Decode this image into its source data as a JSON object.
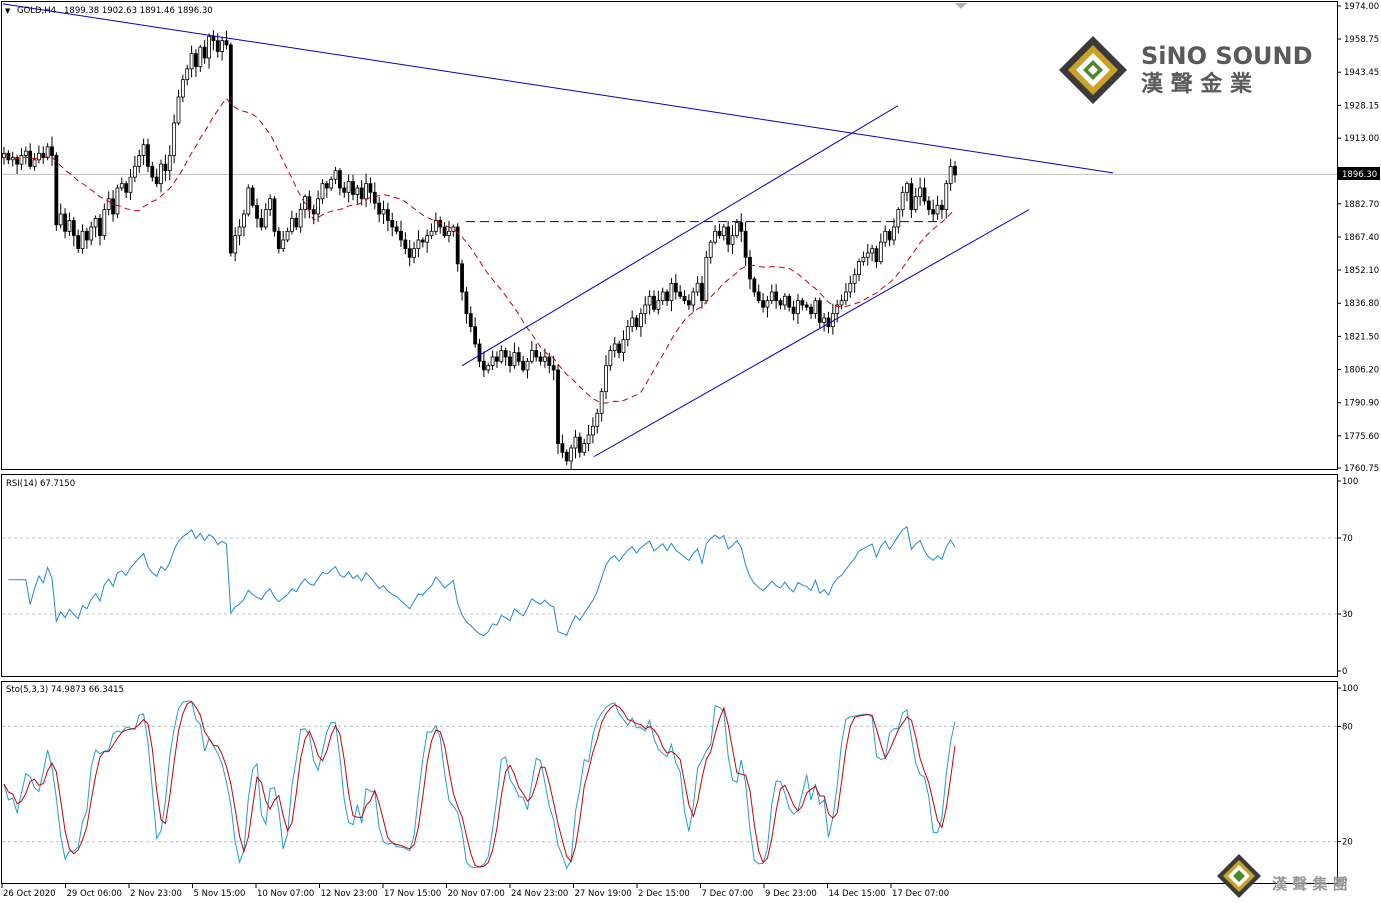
{
  "header": {
    "symbol": "GOLD,H4",
    "ohlc": "1899.38 1902.63 1891.46 1896.30"
  },
  "brand": {
    "name_en": "SiNO SOUND",
    "name_zh": "漢 聲 金 業",
    "footer_zh": "漢 聲 集 團"
  },
  "chart_data": [
    {
      "type": "candlestick",
      "title": "GOLD,H4",
      "ylim": [
        1760.75,
        1974.0
      ],
      "yticks": [
        1974.0,
        1958.75,
        1943.45,
        1928.15,
        1913.0,
        1882.7,
        1867.4,
        1852.1,
        1836.8,
        1821.5,
        1806.2,
        1790.9,
        1775.6,
        1760.75
      ],
      "price_label": "1896.30",
      "current_price": 1896.3,
      "xticks": [
        "26 Oct 2020",
        "29 Oct 06:00",
        "2 Nov 23:00",
        "5 Nov 15:00",
        "10 Nov 07:00",
        "12 Nov 23:00",
        "17 Nov 15:00",
        "20 Nov 07:00",
        "24 Nov 23:00",
        "27 Nov 19:00",
        "2 Dec 15:00",
        "7 Dec 07:00",
        "9 Dec 23:00",
        "14 Dec 15:00",
        "17 Dec 07:00"
      ],
      "close": [
        1906,
        1903,
        1904,
        1901,
        1905,
        1907,
        1900,
        1903,
        1906,
        1904,
        1909,
        1905,
        1873,
        1878,
        1870,
        1875,
        1868,
        1862,
        1870,
        1866,
        1872,
        1876,
        1868,
        1880,
        1885,
        1878,
        1890,
        1892,
        1888,
        1895,
        1900,
        1905,
        1910,
        1900,
        1895,
        1892,
        1901,
        1898,
        1905,
        1920,
        1932,
        1940,
        1945,
        1952,
        1946,
        1955,
        1950,
        1960,
        1958,
        1953,
        1958,
        1956,
        1860,
        1868,
        1872,
        1878,
        1890,
        1882,
        1876,
        1872,
        1880,
        1885,
        1870,
        1862,
        1866,
        1870,
        1876,
        1872,
        1880,
        1886,
        1880,
        1878,
        1885,
        1892,
        1890,
        1894,
        1898,
        1890,
        1888,
        1893,
        1887,
        1890,
        1885,
        1892,
        1888,
        1883,
        1878,
        1880,
        1875,
        1872,
        1870,
        1866,
        1862,
        1858,
        1862,
        1866,
        1865,
        1868,
        1870,
        1875,
        1872,
        1868,
        1870,
        1872,
        1855,
        1842,
        1832,
        1826,
        1818,
        1810,
        1806,
        1808,
        1812,
        1810,
        1815,
        1812,
        1808,
        1814,
        1810,
        1806,
        1810,
        1815,
        1812,
        1810,
        1812,
        1808,
        1806,
        1772,
        1768,
        1764,
        1770,
        1775,
        1768,
        1772,
        1776,
        1780,
        1786,
        1796,
        1808,
        1815,
        1818,
        1814,
        1820,
        1826,
        1830,
        1826,
        1832,
        1836,
        1840,
        1834,
        1838,
        1842,
        1838,
        1846,
        1842,
        1840,
        1838,
        1836,
        1842,
        1846,
        1838,
        1858,
        1865,
        1870,
        1868,
        1872,
        1864,
        1868,
        1874,
        1870,
        1858,
        1848,
        1842,
        1838,
        1835,
        1838,
        1842,
        1838,
        1836,
        1840,
        1835,
        1832,
        1838,
        1836,
        1835,
        1832,
        1838,
        1828,
        1830,
        1826,
        1832,
        1836,
        1838,
        1842,
        1846,
        1850,
        1856,
        1858,
        1860,
        1862,
        1856,
        1865,
        1870,
        1866,
        1872,
        1880,
        1888,
        1892,
        1880,
        1886,
        1890,
        1884,
        1880,
        1878,
        1882,
        1880,
        1892,
        1900,
        1896
      ],
      "ma": {
        "style": "dashed",
        "color": "#cc0000"
      },
      "lines": [
        {
          "name": "descending-trendline",
          "from": [
            "26 Oct 2020",
            1975
          ],
          "to": [
            "19 Dec",
            1897
          ]
        },
        {
          "name": "channel-upper",
          "from": [
            "24 Nov",
            1808
          ],
          "to": [
            "16 Dec",
            1928
          ]
        },
        {
          "name": "channel-lower",
          "from": [
            "30 Nov",
            1766
          ],
          "to": [
            "18 Dec",
            1880
          ]
        },
        {
          "name": "resistance-level",
          "value": 1874.5,
          "style": "dashed"
        }
      ]
    },
    {
      "type": "line",
      "title": "RSI(14) 67.7150",
      "ylim": [
        0,
        100
      ],
      "yticks": [
        100,
        70,
        30,
        0
      ],
      "levels": [
        70,
        30
      ]
    },
    {
      "type": "line",
      "title": "Sto(5,3,3) 74.9873 66.3415",
      "ylim": [
        0,
        100
      ],
      "yticks": [
        100,
        80,
        20,
        0
      ],
      "levels": [
        80,
        20
      ],
      "series": [
        {
          "color": "#1e9ed8"
        },
        {
          "color": "#cc0000"
        }
      ]
    }
  ]
}
